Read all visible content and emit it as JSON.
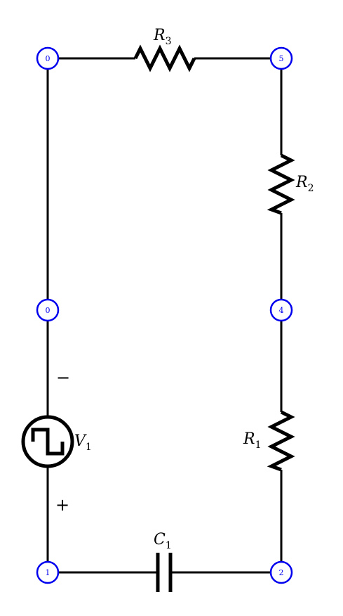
{
  "diagram": {
    "nodes": [
      {
        "id": "n0_top",
        "label": "0"
      },
      {
        "id": "n5",
        "label": "5"
      },
      {
        "id": "n0_mid",
        "label": "0"
      },
      {
        "id": "n4",
        "label": "4"
      },
      {
        "id": "n1",
        "label": "1"
      },
      {
        "id": "n2",
        "label": "2"
      }
    ],
    "components": [
      {
        "id": "R3",
        "type": "resistor",
        "label": "R",
        "sub": "3",
        "from": "0",
        "to": "5"
      },
      {
        "id": "R2",
        "type": "resistor",
        "label": "R",
        "sub": "2",
        "from": "5",
        "to": "4"
      },
      {
        "id": "R1",
        "type": "resistor",
        "label": "R",
        "sub": "1",
        "from": "4",
        "to": "2"
      },
      {
        "id": "C1",
        "type": "capacitor",
        "label": "C",
        "sub": "1",
        "from": "1",
        "to": "2"
      },
      {
        "id": "V1",
        "type": "square-wave-source",
        "label": "V",
        "sub": "1",
        "from": "1",
        "to": "0",
        "plus": "+",
        "minus": "−"
      }
    ],
    "colors": {
      "wire": "#000000",
      "node": "#0000ee",
      "background": "#ffffff"
    }
  }
}
